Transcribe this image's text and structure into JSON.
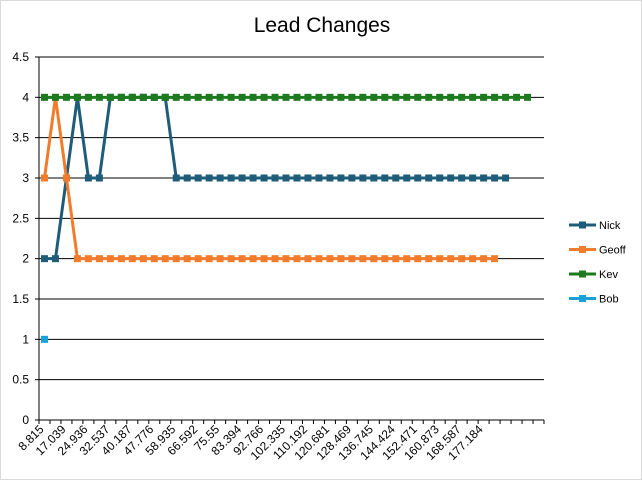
{
  "chart_data": {
    "type": "line",
    "title": "Lead Changes",
    "xlabel": "",
    "ylabel": "",
    "ylim": [
      0,
      4.5
    ],
    "yticks": [
      "0",
      "0.5",
      "1",
      "1.5",
      "2",
      "2.5",
      "3",
      "3.5",
      "4",
      "4.5"
    ],
    "grid": true,
    "legend_position": "right",
    "x_tick_labels": [
      "8.815",
      "17.039",
      "24.936",
      "32.537",
      "40.187",
      "47.776",
      "58.935",
      "66.592",
      "75.55",
      "83.394",
      "92.766",
      "102.335",
      "110.192",
      "120.681",
      "128.469",
      "136.745",
      "144.424",
      "152.471",
      "160.873",
      "168.587",
      "177.184"
    ],
    "series": [
      {
        "name": "Nick",
        "color": "#1f5c7a",
        "values": [
          2,
          2,
          3,
          4,
          3,
          3,
          4,
          4,
          4,
          4,
          4,
          4,
          3,
          3,
          3,
          3,
          3,
          3,
          3,
          3,
          3,
          3,
          3,
          3,
          3,
          3,
          3,
          3,
          3,
          3,
          3,
          3,
          3,
          3,
          3,
          3,
          3,
          3,
          3,
          3,
          3,
          3,
          3
        ]
      },
      {
        "name": "Geoff",
        "color": "#f07c2c",
        "values": [
          3,
          4,
          3,
          2,
          2,
          2,
          2,
          2,
          2,
          2,
          2,
          2,
          2,
          2,
          2,
          2,
          2,
          2,
          2,
          2,
          2,
          2,
          2,
          2,
          2,
          2,
          2,
          2,
          2,
          2,
          2,
          2,
          2,
          2,
          2,
          2,
          2,
          2,
          2,
          2,
          2,
          2
        ]
      },
      {
        "name": "Kev",
        "color": "#1e7a1e",
        "values": [
          4,
          4,
          4,
          4,
          4,
          4,
          4,
          4,
          4,
          4,
          4,
          4,
          4,
          4,
          4,
          4,
          4,
          4,
          4,
          4,
          4,
          4,
          4,
          4,
          4,
          4,
          4,
          4,
          4,
          4,
          4,
          4,
          4,
          4,
          4,
          4,
          4,
          4,
          4,
          4,
          4,
          4,
          4,
          4,
          4
        ]
      },
      {
        "name": "Bob",
        "color": "#1ba1d8",
        "values": [
          1
        ]
      }
    ]
  }
}
